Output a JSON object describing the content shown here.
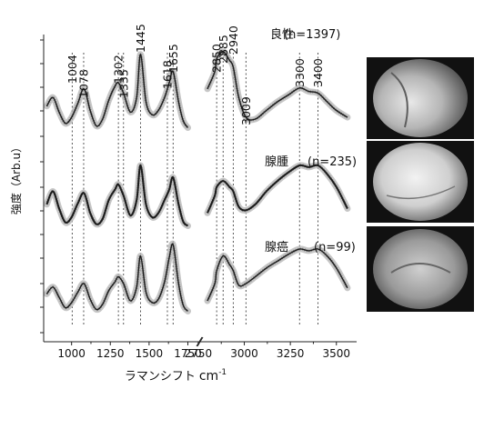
{
  "chart_data": {
    "type": "line",
    "xlabel": "ラマンシフト",
    "xlabel_unit": "cm",
    "xlabel_unit_exp": "-1",
    "ylabel": "強度（Arb.u）",
    "x_break": true,
    "xlim_low": [
      820,
      1800
    ],
    "xlim_high": [
      2780,
      3600
    ],
    "x_ticks": [
      1000,
      1250,
      1500,
      1750,
      2750,
      3000,
      3250,
      3500
    ],
    "x_tick_labels": [
      "1000",
      "1250",
      "1500",
      "1750",
      "2750",
      "3000",
      "3250",
      "3500"
    ],
    "peak_markers": [
      {
        "x": 1004,
        "label": "1004"
      },
      {
        "x": 1078,
        "label": "1078"
      },
      {
        "x": 1302,
        "label": "1302"
      },
      {
        "x": 1335,
        "label": "1335"
      },
      {
        "x": 1445,
        "label": "1445"
      },
      {
        "x": 1618,
        "label": "1618"
      },
      {
        "x": 1655,
        "label": "1655"
      },
      {
        "x": 2850,
        "label": "2850"
      },
      {
        "x": 2885,
        "label": "2885"
      },
      {
        "x": 2940,
        "label": "2940"
      },
      {
        "x": 3009,
        "label": "3009"
      },
      {
        "x": 3300,
        "label": "3300"
      },
      {
        "x": 3400,
        "label": "3400"
      }
    ],
    "series": [
      {
        "name": "良性",
        "n_label": "(n=1397)",
        "x_low": [
          840,
          880,
          920,
          960,
          1000,
          1040,
          1080,
          1120,
          1160,
          1200,
          1240,
          1280,
          1302,
          1335,
          1380,
          1420,
          1445,
          1480,
          1520,
          1560,
          1600,
          1630,
          1655,
          1690,
          1720,
          1750
        ],
        "y_low": [
          0.35,
          0.45,
          0.28,
          0.15,
          0.22,
          0.38,
          0.55,
          0.3,
          0.12,
          0.2,
          0.42,
          0.58,
          0.62,
          0.5,
          0.28,
          0.45,
          0.95,
          0.4,
          0.25,
          0.3,
          0.45,
          0.62,
          0.75,
          0.4,
          0.18,
          0.1
        ],
        "x_high": [
          2800,
          2840,
          2850,
          2885,
          2920,
          2940,
          2970,
          3009,
          3060,
          3120,
          3180,
          3240,
          3300,
          3350,
          3400,
          3450,
          3500,
          3560
        ],
        "y_high": [
          0.55,
          0.75,
          0.9,
          0.98,
          0.88,
          0.8,
          0.45,
          0.22,
          0.2,
          0.3,
          0.4,
          0.48,
          0.56,
          0.52,
          0.5,
          0.4,
          0.3,
          0.22
        ]
      },
      {
        "name": "腺腫",
        "n_label": "(n=235)",
        "x_low": [
          840,
          880,
          920,
          960,
          1000,
          1040,
          1080,
          1120,
          1160,
          1200,
          1240,
          1280,
          1302,
          1335,
          1380,
          1420,
          1445,
          1480,
          1520,
          1560,
          1600,
          1630,
          1655,
          1690,
          1720,
          1750
        ],
        "y_low": [
          0.35,
          0.5,
          0.3,
          0.14,
          0.2,
          0.36,
          0.48,
          0.25,
          0.12,
          0.18,
          0.4,
          0.52,
          0.58,
          0.45,
          0.22,
          0.4,
          0.8,
          0.35,
          0.2,
          0.25,
          0.4,
          0.52,
          0.66,
          0.35,
          0.15,
          0.1
        ],
        "x_high": [
          2800,
          2840,
          2850,
          2885,
          2920,
          2940,
          2970,
          3009,
          3060,
          3120,
          3180,
          3240,
          3300,
          3350,
          3400,
          3450,
          3500,
          3560
        ],
        "y_high": [
          0.25,
          0.45,
          0.55,
          0.62,
          0.55,
          0.5,
          0.32,
          0.28,
          0.35,
          0.5,
          0.62,
          0.72,
          0.8,
          0.78,
          0.8,
          0.7,
          0.55,
          0.3
        ]
      },
      {
        "name": "腺癌",
        "n_label": "(n=99)",
        "x_low": [
          840,
          880,
          920,
          960,
          1000,
          1040,
          1080,
          1120,
          1160,
          1200,
          1240,
          1280,
          1302,
          1335,
          1380,
          1420,
          1445,
          1480,
          1520,
          1560,
          1600,
          1630,
          1655,
          1690,
          1720,
          1750
        ],
        "y_low": [
          0.28,
          0.36,
          0.24,
          0.12,
          0.18,
          0.3,
          0.4,
          0.22,
          0.1,
          0.16,
          0.32,
          0.42,
          0.48,
          0.4,
          0.2,
          0.36,
          0.72,
          0.3,
          0.18,
          0.22,
          0.42,
          0.7,
          0.85,
          0.4,
          0.15,
          0.08
        ],
        "x_high": [
          2800,
          2840,
          2850,
          2885,
          2920,
          2940,
          2970,
          3009,
          3060,
          3120,
          3180,
          3240,
          3300,
          3350,
          3400,
          3450,
          3500,
          3560
        ],
        "y_high": [
          0.2,
          0.4,
          0.55,
          0.72,
          0.62,
          0.55,
          0.38,
          0.4,
          0.48,
          0.58,
          0.66,
          0.74,
          0.8,
          0.78,
          0.8,
          0.72,
          0.58,
          0.35
        ]
      }
    ],
    "grid": false
  }
}
